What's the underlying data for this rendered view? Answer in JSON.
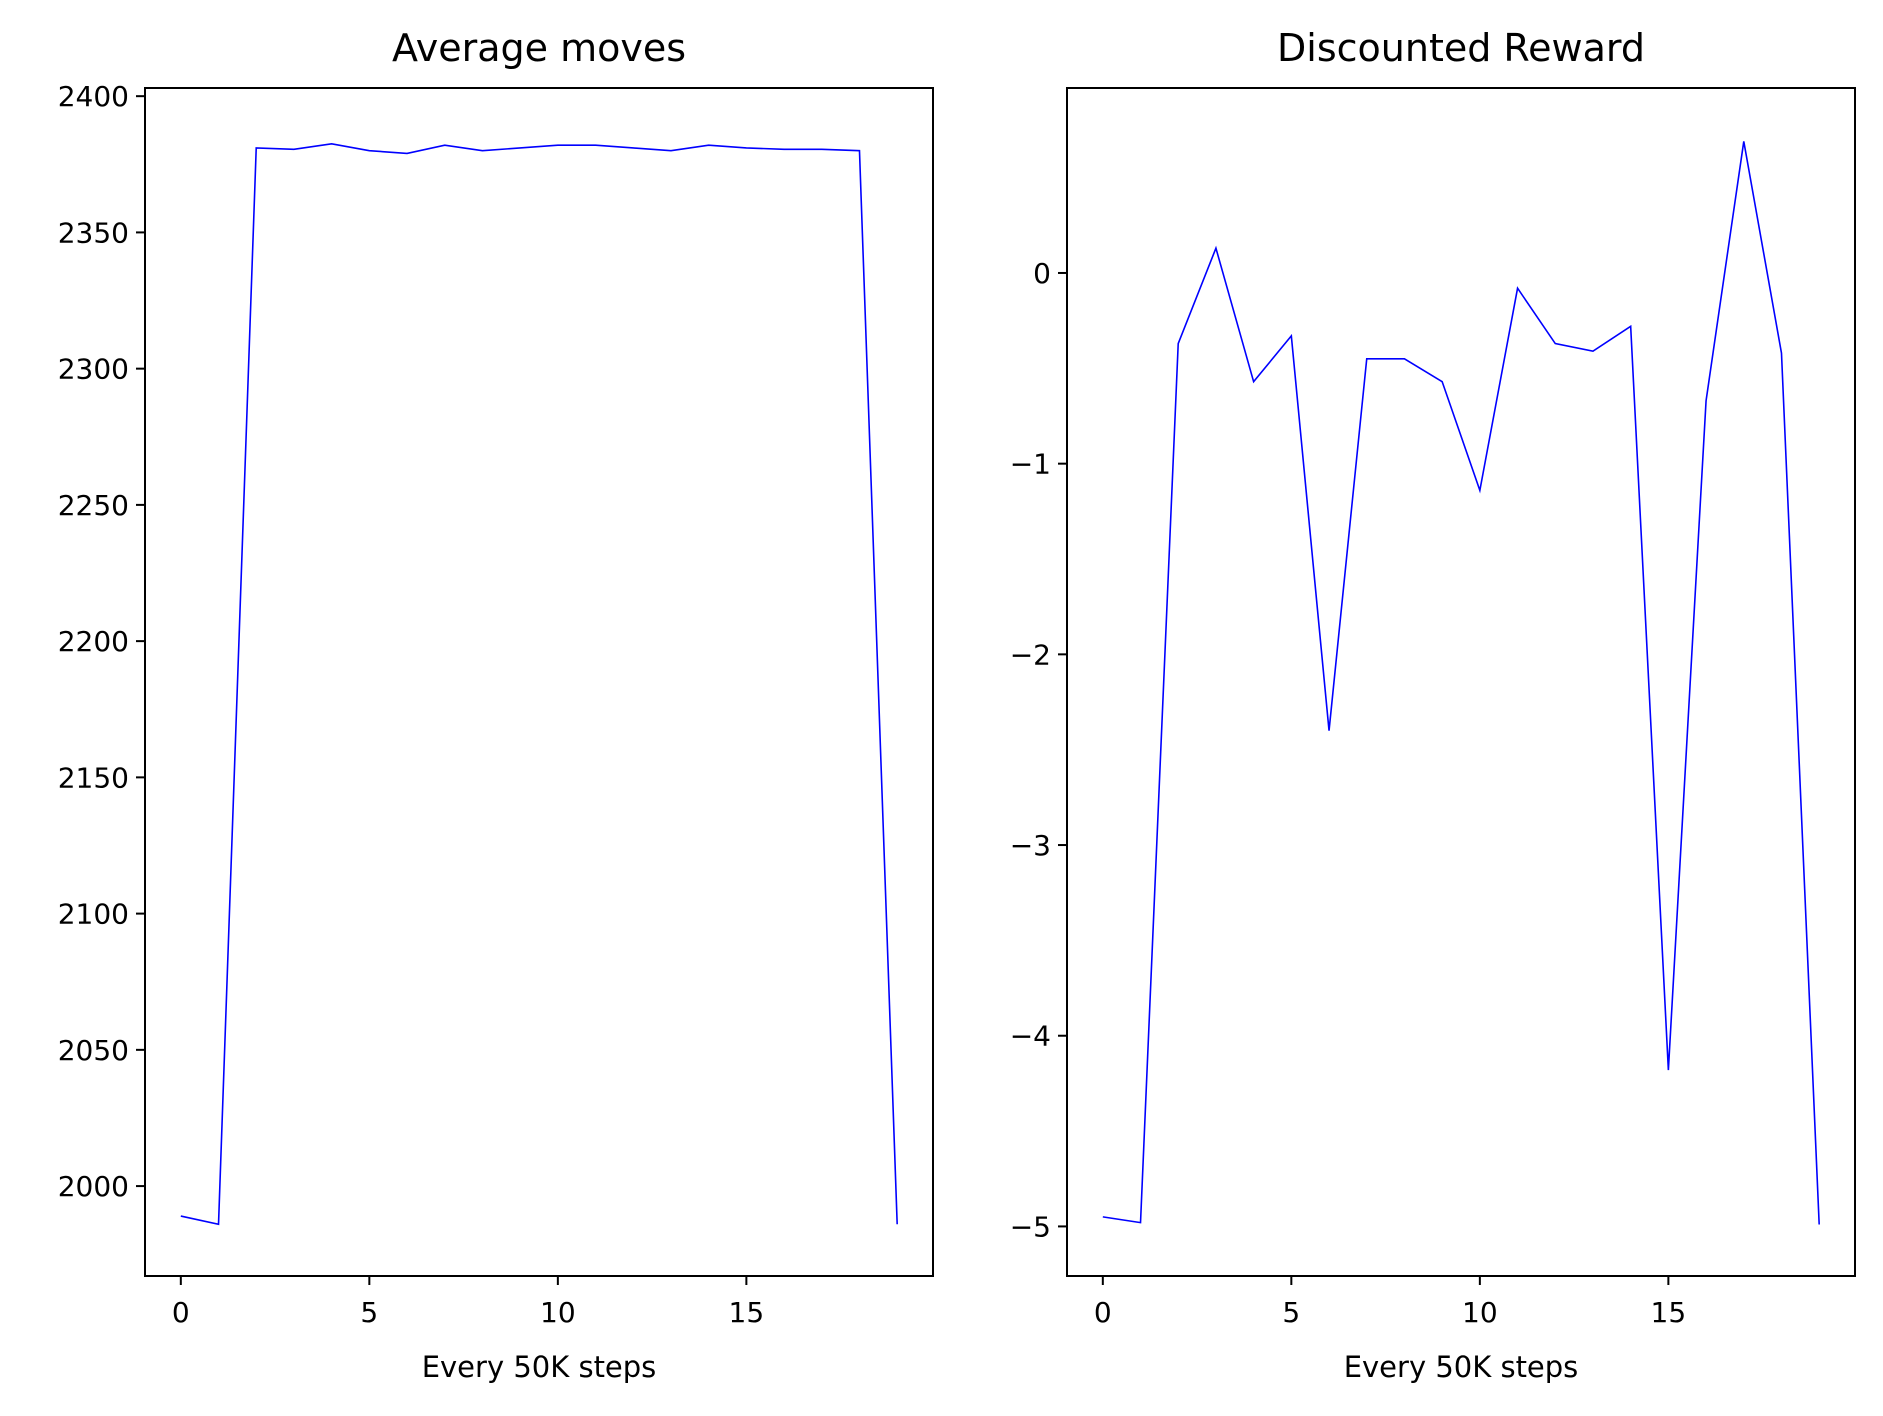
{
  "figure": {
    "chart_data": [
      {
        "type": "line",
        "title": "Average moves",
        "xlabel": "Every 50K steps",
        "ylabel": "",
        "xlim": [
          -0.95,
          19.95
        ],
        "ylim": [
          1967,
          2403
        ],
        "xticks": [
          0,
          5,
          10,
          15
        ],
        "xtick_labels": [
          "0",
          "5",
          "10",
          "15"
        ],
        "yticks": [
          2000,
          2050,
          2100,
          2150,
          2200,
          2250,
          2300,
          2350,
          2400
        ],
        "ytick_labels": [
          "2000",
          "2050",
          "2100",
          "2150",
          "2200",
          "2250",
          "2300",
          "2350",
          "2400"
        ],
        "grid": false,
        "legend": "none",
        "series": [
          {
            "color": "#0000ff",
            "x": [
              0,
              1,
              2,
              3,
              4,
              5,
              6,
              7,
              8,
              9,
              10,
              11,
              12,
              13,
              14,
              15,
              16,
              17,
              18,
              19
            ],
            "values": [
              1989,
              1986,
              2381,
              2380.5,
              2382.5,
              2380,
              2379,
              2382,
              2380,
              2381,
              2382,
              2382,
              2381,
              2380,
              2382,
              2381,
              2380.5,
              2380.5,
              2380,
              1986
            ]
          }
        ]
      },
      {
        "type": "line",
        "title": "Discounted Reward",
        "xlabel": "Every 50K steps",
        "ylabel": "",
        "xlim": [
          -0.95,
          19.95
        ],
        "ylim": [
          -5.26,
          0.97
        ],
        "xticks": [
          0,
          5,
          10,
          15
        ],
        "xtick_labels": [
          "0",
          "5",
          "10",
          "15"
        ],
        "yticks": [
          -5,
          -4,
          -3,
          -2,
          -1,
          0
        ],
        "ytick_labels": [
          "−5",
          "−4",
          "−3",
          "−2",
          "−1",
          "0"
        ],
        "grid": false,
        "legend": "none",
        "series": [
          {
            "color": "#0000ff",
            "x": [
              0,
              1,
              2,
              3,
              4,
              5,
              6,
              7,
              8,
              9,
              10,
              11,
              12,
              13,
              14,
              15,
              16,
              17,
              18,
              19
            ],
            "values": [
              -4.95,
              -4.98,
              -0.37,
              0.13,
              -0.57,
              -0.33,
              -2.4,
              -0.45,
              -0.45,
              -0.57,
              -1.14,
              -0.08,
              -0.37,
              -0.41,
              -0.28,
              -4.18,
              -0.67,
              0.69,
              -0.42,
              -4.99
            ]
          }
        ]
      }
    ]
  }
}
